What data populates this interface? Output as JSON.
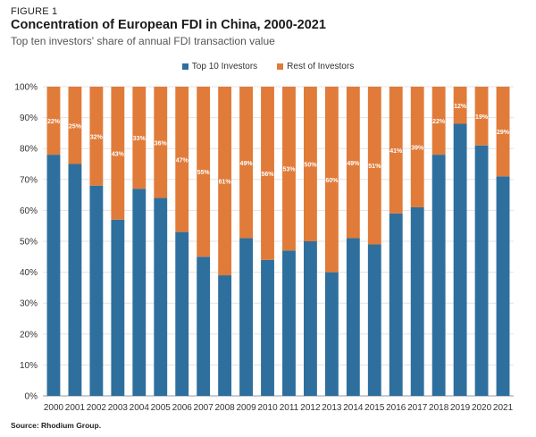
{
  "figure_label": "FIGURE 1",
  "title": "Concentration of European FDI in China, 2000-2021",
  "subtitle": "Top ten investors' share of annual FDI transaction value",
  "source": "Source: Rhodium Group.",
  "colors": {
    "top10": "#2e6f9e",
    "rest": "#e07b39",
    "grid": "#e3e3e3",
    "axis": "#999999"
  },
  "chart_data": {
    "type": "bar",
    "stacked": true,
    "categories": [
      "2000",
      "2001",
      "2002",
      "2003",
      "2004",
      "2005",
      "2006",
      "2007",
      "2008",
      "2009",
      "2010",
      "2011",
      "2012",
      "2013",
      "2014",
      "2015",
      "2016",
      "2017",
      "2018",
      "2019",
      "2020",
      "2021"
    ],
    "series": [
      {
        "name": "Top 10 Investors",
        "values": [
          78,
          75,
          68,
          57,
          67,
          64,
          53,
          45,
          39,
          51,
          44,
          47,
          50,
          40,
          51,
          49,
          59,
          61,
          78,
          88,
          81,
          71
        ]
      },
      {
        "name": "Rest of Investors",
        "values": [
          22,
          25,
          32,
          43,
          33,
          36,
          47,
          55,
          61,
          49,
          56,
          53,
          50,
          60,
          49,
          51,
          41,
          39,
          22,
          12,
          19,
          29
        ],
        "labels": [
          "22%",
          "25%",
          "32%",
          "43%",
          "33%",
          "36%",
          "47%",
          "55%",
          "61%",
          "49%",
          "56%",
          "53%",
          "50%",
          "60%",
          "49%",
          "51%",
          "41%",
          "39%",
          "22%",
          "12%",
          "19%",
          "29%"
        ]
      }
    ],
    "yticks": [
      "0%",
      "10%",
      "20%",
      "30%",
      "40%",
      "50%",
      "60%",
      "70%",
      "80%",
      "90%",
      "100%"
    ],
    "ylim": [
      0,
      100
    ],
    "grid": true,
    "legend": "top-center"
  }
}
